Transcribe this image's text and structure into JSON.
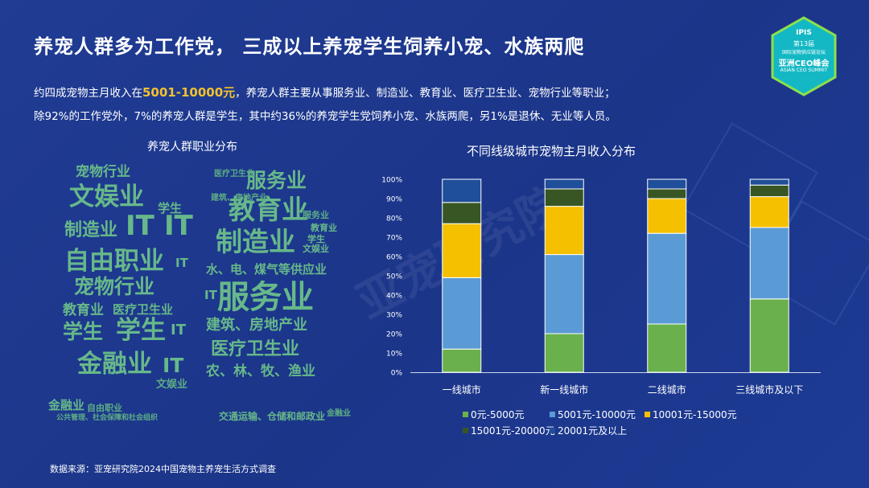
{
  "title": "养宠人群多为工作党， 三成以上养宠学生饲养小宠、水族两爬",
  "logo": {
    "brand": "IPIS",
    "line1": "第13届",
    "line2": "国际宠物供应链论坛",
    "line3": "亚洲CEO峰会",
    "line4": "ASIAN CEO SUMMIT"
  },
  "description": {
    "line1_pre": "约四成宠物主月收入在",
    "line1_highlight": "5001-10000元",
    "line1_post": "，养宠人群主要从事服务业、制造业、教育业、医疗卫生业、宠物行业等职业；",
    "line2": "除92%的工作党外，7%的养宠人群是学生，其中约36%的养宠学生党饲养小宠、水族两爬，另1%是退休、无业等人员。"
  },
  "wordcloud": {
    "title": "养宠人群职业分布",
    "words": [
      "宠物行业",
      "文娱业",
      "学生",
      "制造业",
      "IT",
      "IT",
      "自由职业",
      "IT",
      "宠物行业",
      "教育业",
      "医疗卫生业",
      "学生",
      "学生",
      "IT",
      "金融业",
      "IT",
      "文娱业",
      "金融业",
      "自由职业",
      "公共管理、社会保障和社会组织",
      "服务业",
      "教育业",
      "学生",
      "制造业",
      "水、电、煤气等供应业",
      "服务业",
      "IT",
      "建筑、房地产业",
      "医疗卫生业",
      "农、林、牧、渔业",
      "交通运输、仓储和邮政业",
      "服务业",
      "教育业",
      "文娱业",
      "金融业",
      "医疗卫生业",
      "建筑、房地产业"
    ]
  },
  "watermark": "亚宠研究院",
  "chart_data": {
    "type": "bar",
    "stacked": true,
    "title": "不同线级城市宠物主月收入分布",
    "categories": [
      "一线城市",
      "新一线城市",
      "二线城市",
      "三线城市及以下"
    ],
    "ylim": [
      0,
      100
    ],
    "yticks": [
      "0%",
      "10%",
      "20%",
      "30%",
      "40%",
      "50%",
      "60%",
      "70%",
      "80%",
      "90%",
      "100%"
    ],
    "series": [
      {
        "name": "0元-5000元",
        "color": "#6ab04c",
        "values": [
          12,
          20,
          25,
          38
        ]
      },
      {
        "name": "5001元-10000元",
        "color": "#5b9bd5",
        "values": [
          37,
          41,
          47,
          37
        ]
      },
      {
        "name": "10001元-15000元",
        "color": "#f5c000",
        "values": [
          28,
          25,
          18,
          16
        ]
      },
      {
        "name": "15001元-20000元",
        "color": "#375623",
        "values": [
          11,
          9,
          5,
          6
        ]
      },
      {
        "name": "20001元及以上",
        "color": "#1f4e9a",
        "values": [
          12,
          5,
          5,
          3
        ]
      }
    ],
    "legend_position": "bottom"
  },
  "source": "数据来源：亚宠研究院2024中国宠物主养宠生活方式调查"
}
